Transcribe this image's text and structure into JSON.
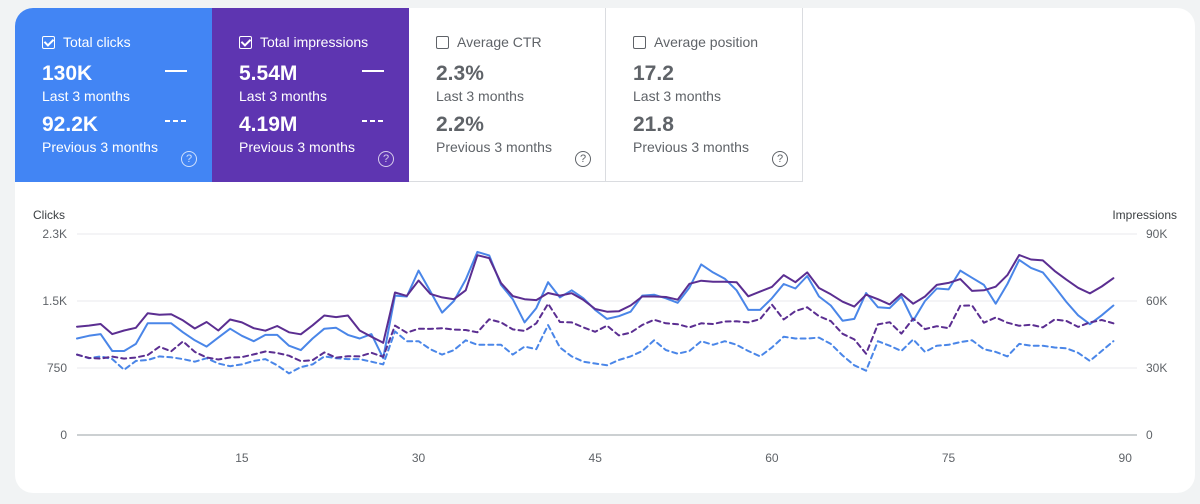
{
  "cards": [
    {
      "label": "Total clicks",
      "checked": true,
      "bg": "#4285f4",
      "value": "130K",
      "period": "Last 3 months",
      "prev_value": "92.2K",
      "prev_period": "Previous 3 months",
      "help": "?"
    },
    {
      "label": "Total impressions",
      "checked": true,
      "bg": "#5e35b1",
      "value": "5.54M",
      "period": "Last 3 months",
      "prev_value": "4.19M",
      "prev_period": "Previous 3 months",
      "help": "?"
    },
    {
      "label": "Average CTR",
      "checked": false,
      "bg": "#ffffff",
      "value": "2.3%",
      "period": "Last 3 months",
      "prev_value": "2.2%",
      "prev_period": "Previous 3 months",
      "help": "?"
    },
    {
      "label": "Average position",
      "checked": false,
      "bg": "#ffffff",
      "value": "17.2",
      "period": "Last 3 months",
      "prev_value": "21.8",
      "prev_period": "Previous 3 months",
      "help": "?"
    }
  ],
  "chart_data": {
    "type": "line",
    "y_left_label": "Clicks",
    "y_right_label": "Impressions",
    "y_left_ticks": [
      "2.3K",
      "1.5K",
      "750",
      "0"
    ],
    "y_right_ticks": [
      "90K",
      "60K",
      "30K",
      "0"
    ],
    "ylim_left": [
      0,
      2250
    ],
    "ylim_right": [
      0,
      90000
    ],
    "x_ticks": [
      15,
      30,
      45,
      60,
      75,
      90
    ],
    "x_range": [
      1,
      91
    ],
    "grid": true,
    "colors": {
      "clicks": "#4a86e8",
      "impressions": "#5b2e91",
      "grid": "#e8eaed",
      "axis": "#9aa0a6"
    },
    "series": [
      {
        "name": "Total clicks",
        "axis": "left",
        "style": "solid",
        "color": "#4a86e8",
        "values": [
          1080,
          1110,
          1130,
          940,
          940,
          1020,
          1250,
          1250,
          1250,
          1150,
          1060,
          990,
          1090,
          1190,
          1110,
          1050,
          1120,
          1120,
          1000,
          950,
          1080,
          1190,
          1200,
          1120,
          1080,
          1130,
          860,
          1560,
          1550,
          1840,
          1610,
          1370,
          1500,
          1740,
          2050,
          2010,
          1680,
          1520,
          1260,
          1420,
          1710,
          1540,
          1620,
          1530,
          1400,
          1300,
          1330,
          1380,
          1560,
          1570,
          1530,
          1480,
          1650,
          1910,
          1820,
          1750,
          1620,
          1400,
          1400,
          1530,
          1690,
          1640,
          1780,
          1550,
          1450,
          1280,
          1300,
          1590,
          1430,
          1420,
          1550,
          1280,
          1500,
          1640,
          1630,
          1840,
          1760,
          1680,
          1470,
          1690,
          1960,
          1870,
          1820,
          1660,
          1490,
          1340,
          1240,
          1340,
          1450
        ]
      },
      {
        "name": "Total impressions",
        "axis": "right",
        "style": "solid",
        "color": "#5b2e91",
        "values": [
          48500,
          49000,
          49700,
          45200,
          46800,
          48000,
          54500,
          53800,
          54100,
          51300,
          47700,
          50600,
          46800,
          51700,
          50400,
          47800,
          46700,
          48800,
          46000,
          45100,
          49100,
          53500,
          52800,
          53500,
          46800,
          44000,
          41300,
          63800,
          62300,
          69200,
          63200,
          61600,
          60800,
          64800,
          80500,
          79200,
          68000,
          62200,
          60800,
          60400,
          63600,
          62400,
          63500,
          60500,
          56400,
          55200,
          55400,
          58000,
          62000,
          62000,
          61800,
          60600,
          67700,
          69100,
          68600,
          68600,
          68400,
          62100,
          64200,
          66300,
          71600,
          68400,
          72800,
          65800,
          63000,
          59700,
          57500,
          62800,
          60800,
          58500,
          63200,
          58800,
          62000,
          67200,
          68100,
          69800,
          64500,
          64800,
          66400,
          71600,
          80600,
          78600,
          78200,
          73500,
          69600,
          65900,
          63400,
          66500,
          70200
        ]
      },
      {
        "name": "Total clicks (previous)",
        "axis": "left",
        "style": "dashed",
        "color": "#4a86e8",
        "values": [
          900,
          860,
          880,
          850,
          730,
          830,
          840,
          880,
          870,
          850,
          820,
          860,
          800,
          770,
          790,
          830,
          850,
          780,
          690,
          760,
          790,
          880,
          860,
          850,
          850,
          820,
          790,
          1160,
          1050,
          1050,
          960,
          900,
          950,
          1060,
          1010,
          1010,
          1010,
          900,
          990,
          960,
          1230,
          980,
          880,
          820,
          800,
          780,
          840,
          880,
          940,
          1060,
          950,
          910,
          940,
          1050,
          1010,
          1050,
          1010,
          940,
          880,
          980,
          1100,
          1080,
          1080,
          1090,
          1020,
          890,
          780,
          720,
          1050,
          1000,
          940,
          1070,
          930,
          1000,
          1010,
          1040,
          1060,
          960,
          930,
          880,
          1020,
          1000,
          1000,
          980,
          970,
          920,
          830,
          940,
          1050
        ]
      },
      {
        "name": "Total impressions (previous)",
        "axis": "right",
        "style": "dashed",
        "color": "#5b2e91",
        "values": [
          36000,
          34500,
          34200,
          35100,
          34200,
          34700,
          35800,
          39500,
          37500,
          41900,
          37200,
          34700,
          33800,
          34700,
          34900,
          36100,
          37400,
          36700,
          35500,
          33100,
          33500,
          37000,
          34600,
          35300,
          35200,
          36800,
          35000,
          49000,
          45800,
          47600,
          47500,
          47800,
          47200,
          47000,
          46000,
          51800,
          50400,
          47300,
          46600,
          50000,
          58800,
          50600,
          50400,
          48200,
          46200,
          49000,
          44600,
          45800,
          49300,
          51600,
          50000,
          49600,
          48200,
          50000,
          49700,
          50800,
          50900,
          50400,
          51900,
          58400,
          51700,
          55500,
          57200,
          53200,
          51000,
          45300,
          42800,
          36400,
          49500,
          50500,
          45400,
          52100,
          47400,
          48700,
          47800,
          57900,
          58000,
          50300,
          52600,
          50300,
          48900,
          49400,
          48200,
          51700,
          51100,
          48400,
          50400,
          51500,
          50000
        ]
      }
    ]
  }
}
